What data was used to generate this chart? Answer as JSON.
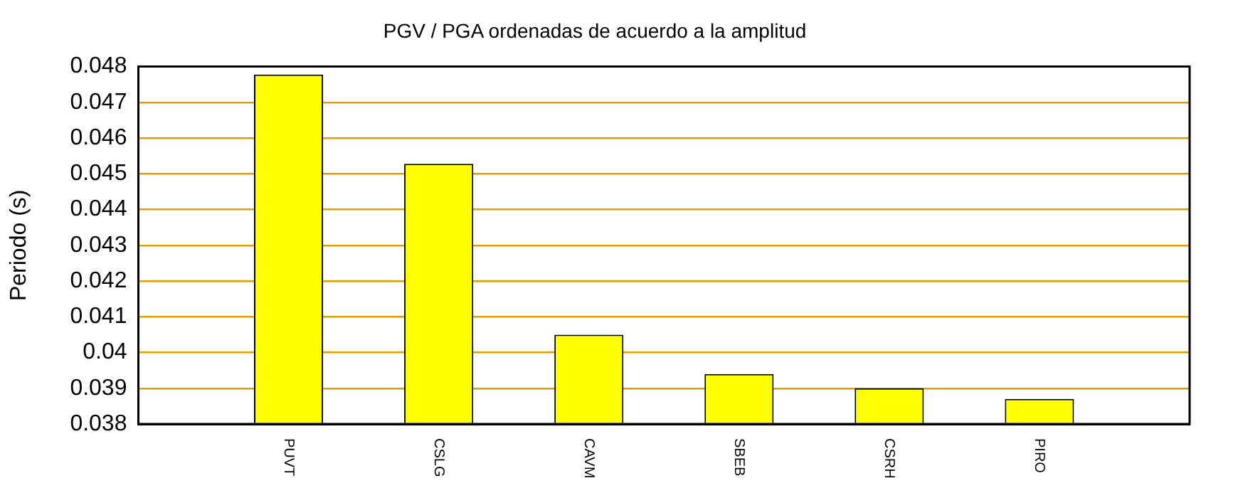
{
  "chart_data": {
    "type": "bar",
    "title": "PGV / PGA ordenadas de acuerdo a la amplitud",
    "ylabel": "Periodo (s)",
    "categories": [
      "PUVT",
      "CSLG",
      "CAVM",
      "SBEB",
      "CSRH",
      "PIRO"
    ],
    "values": [
      0.04778,
      0.04528,
      0.0405,
      0.0394,
      0.039,
      0.0387
    ],
    "color": "#ffff00",
    "ylim": [
      0.038,
      0.048
    ],
    "yticks": [
      0.038,
      0.039,
      0.04,
      0.041,
      0.042,
      0.043,
      0.044,
      0.045,
      0.046,
      0.047,
      0.048
    ],
    "grid": "y",
    "legend": false
  }
}
